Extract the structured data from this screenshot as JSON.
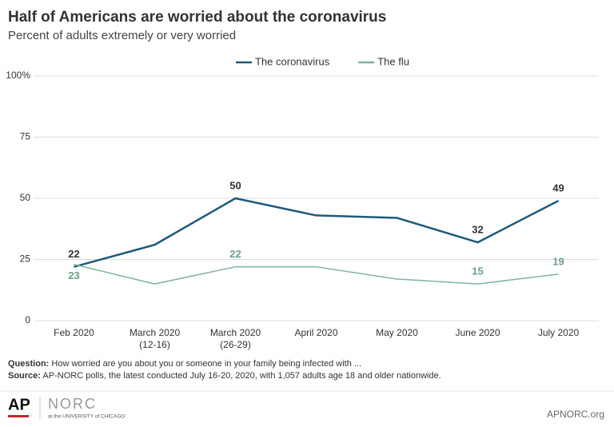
{
  "chart_data": {
    "type": "line",
    "title": "Half of Americans are worried about the coronavirus",
    "subtitle": "Percent of adults extremely or very worried",
    "categories": [
      "Feb 2020",
      "March 2020\n(12-16)",
      "March 2020\n(26-29)",
      "April 2020",
      "May 2020",
      "June 2020",
      "July 2020"
    ],
    "series": [
      {
        "name": "The coronavirus",
        "color": "#1f5a7a",
        "label_color": "#333333",
        "values": [
          22,
          31,
          50,
          43,
          42,
          32,
          49
        ],
        "value_labels": [
          "22",
          null,
          "50",
          null,
          null,
          "32",
          "49"
        ]
      },
      {
        "name": "The flu",
        "color": "#7fb39a",
        "label_color": "#6aa284",
        "values": [
          23,
          15,
          22,
          22,
          17,
          15,
          19
        ],
        "value_labels": [
          "23",
          null,
          "22",
          null,
          null,
          "15",
          "19"
        ]
      }
    ],
    "ylim": [
      0,
      100
    ],
    "yticks": [
      0,
      25,
      50,
      75,
      {
        "value": 100,
        "label": "100%"
      }
    ],
    "grid": true,
    "legend": "top"
  },
  "footer": {
    "question_label": "Question:",
    "question": " How worried are you about you or someone in your family being infected with ...",
    "source_label": "Source:",
    "source": " AP-NORC polls, the latest conducted July 16-20, 2020, with 1,057 adults age 18 and older nationwide.",
    "logo_ap": "AP",
    "logo_norc": "NORC",
    "logo_uchicago": "at the UNIVERSITY of CHICAGO",
    "site": "APNORC.org"
  }
}
